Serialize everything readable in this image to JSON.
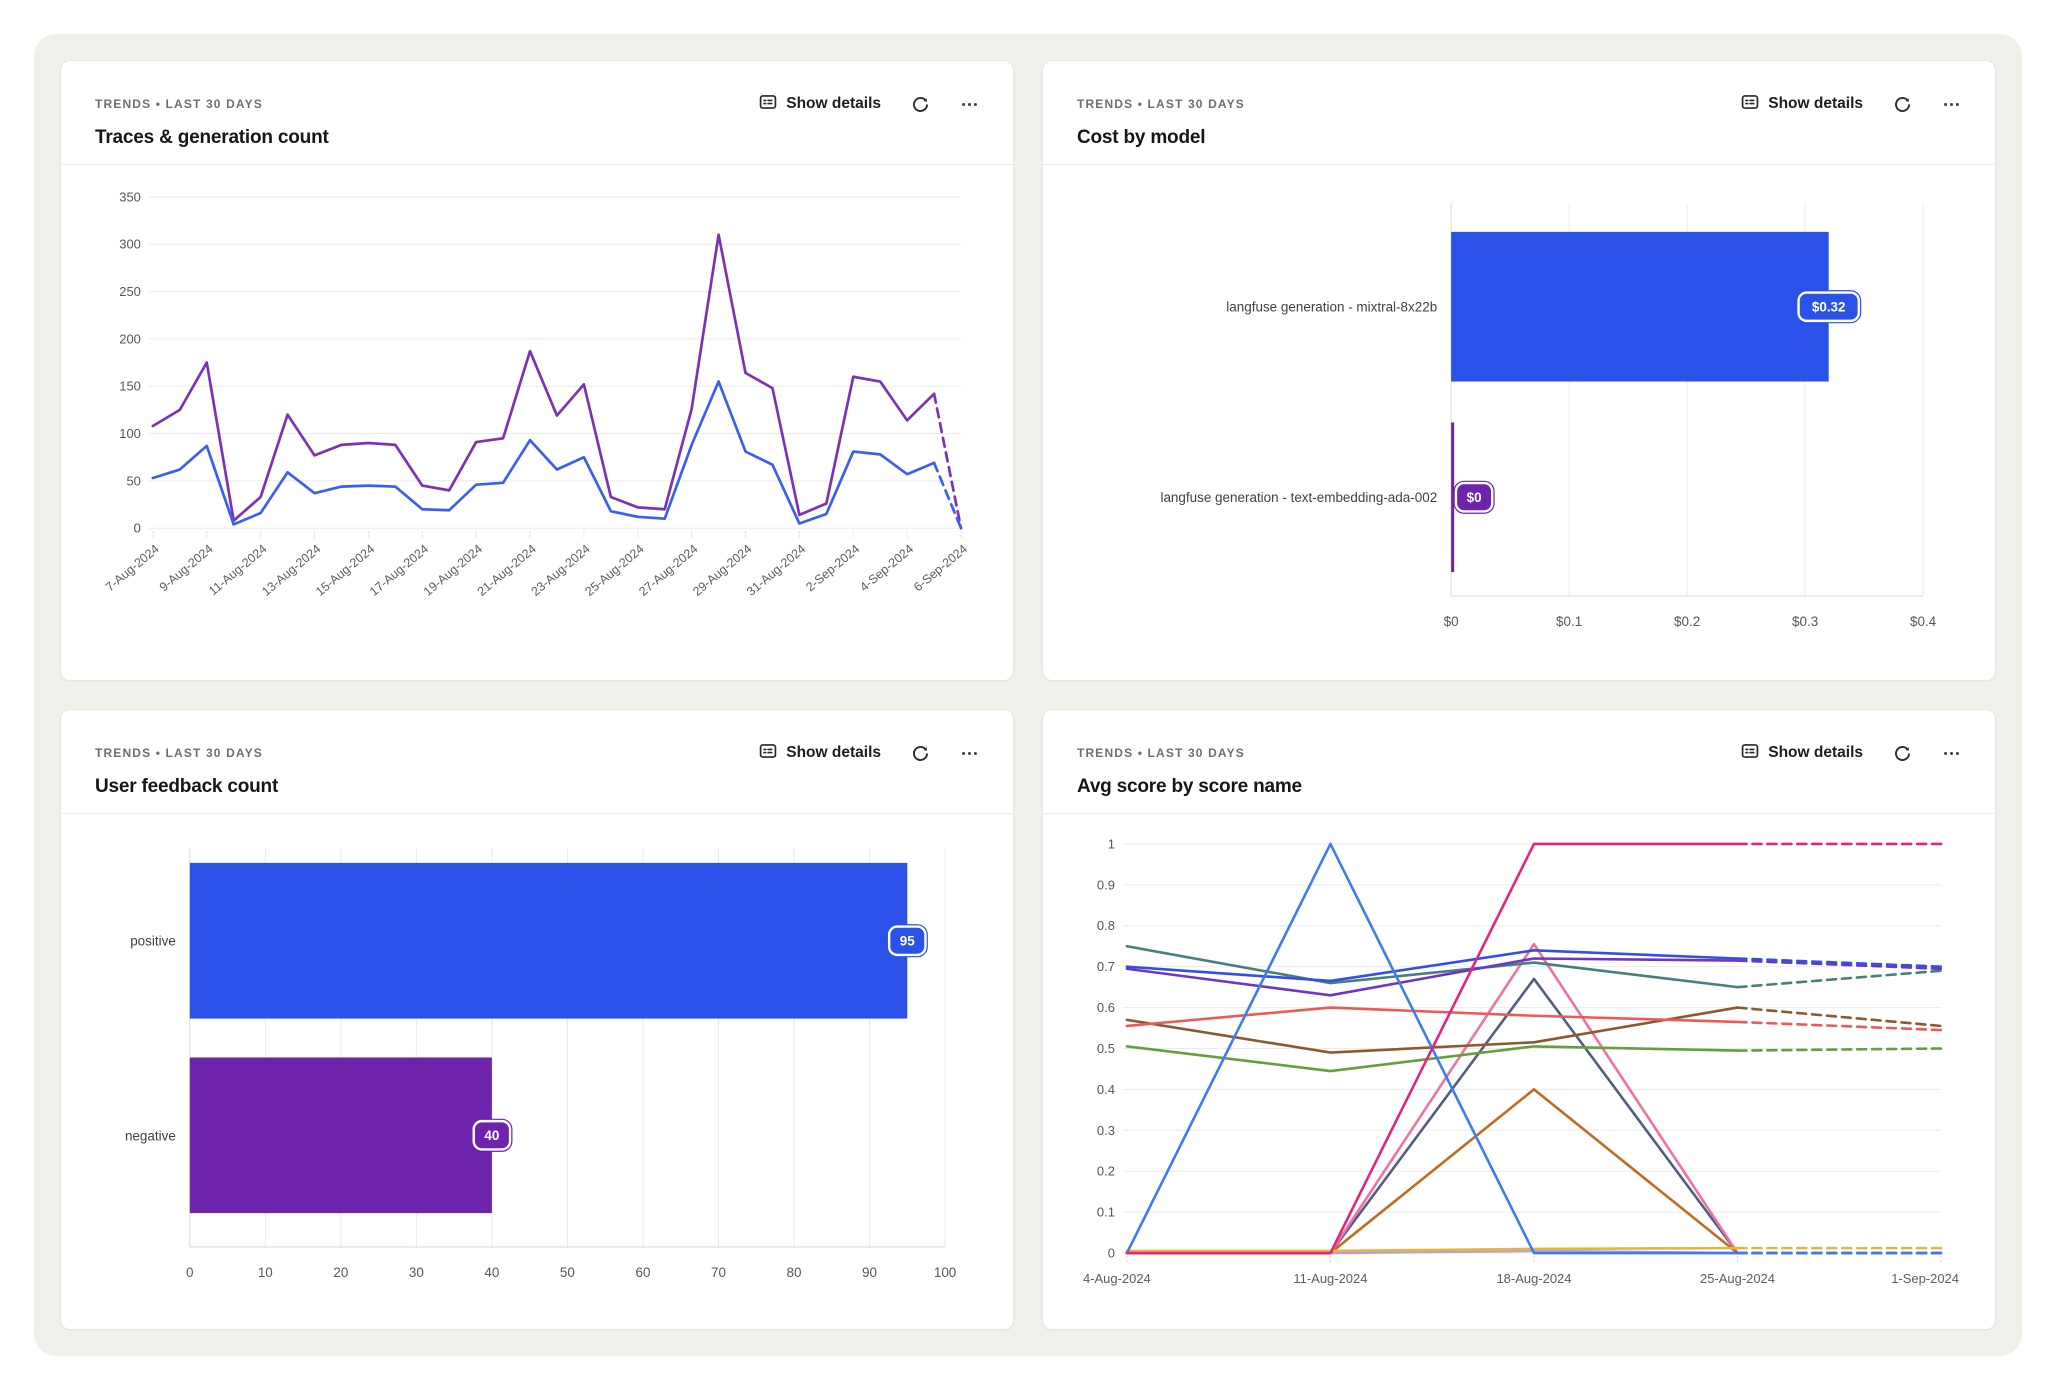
{
  "theme": {
    "panel_bg": "#f1f1ec",
    "card_bg": "#ffffff",
    "blue": "#2a52e8",
    "purple": "#6d23ab",
    "grid_line": "#ebebe9",
    "axis_text": "#55555c"
  },
  "cards": {
    "traces": {
      "eyebrow": "TRENDS • LAST 30 DAYS",
      "title": "Traces & generation count",
      "show_details": "Show details"
    },
    "cost": {
      "eyebrow": "TRENDS • LAST 30 DAYS",
      "title": "Cost by model",
      "show_details": "Show details"
    },
    "feedback": {
      "eyebrow": "TRENDS • LAST 30 DAYS",
      "title": "User feedback count",
      "show_details": "Show details"
    },
    "scores": {
      "eyebrow": "TRENDS • LAST 30 DAYS",
      "title": "Avg score by score name",
      "show_details": "Show details"
    }
  },
  "chart_data": [
    {
      "id": "traces-generation-count",
      "type": "line",
      "title": "Traces & generation count",
      "x": [
        "7-Aug-2024",
        "8-Aug-2024",
        "9-Aug-2024",
        "10-Aug-2024",
        "11-Aug-2024",
        "12-Aug-2024",
        "13-Aug-2024",
        "14-Aug-2024",
        "15-Aug-2024",
        "16-Aug-2024",
        "17-Aug-2024",
        "18-Aug-2024",
        "19-Aug-2024",
        "20-Aug-2024",
        "21-Aug-2024",
        "22-Aug-2024",
        "23-Aug-2024",
        "24-Aug-2024",
        "25-Aug-2024",
        "26-Aug-2024",
        "27-Aug-2024",
        "28-Aug-2024",
        "29-Aug-2024",
        "30-Aug-2024",
        "31-Aug-2024",
        "1-Sep-2024",
        "2-Sep-2024",
        "3-Sep-2024",
        "4-Sep-2024",
        "5-Sep-2024",
        "6-Sep-2024"
      ],
      "x_labels_shown_every": 2,
      "ylim": [
        0,
        350
      ],
      "yticks": [
        0,
        50,
        100,
        150,
        200,
        250,
        300,
        350
      ],
      "dashed_tail_points": 1,
      "series": [
        {
          "name": "series-purple",
          "color": "#7b32b4",
          "values": [
            108,
            125,
            175,
            8,
            33,
            120,
            77,
            88,
            90,
            88,
            45,
            40,
            91,
            95,
            187,
            119,
            152,
            33,
            22,
            20,
            126,
            310,
            164,
            148,
            14,
            26,
            160,
            155,
            114,
            142,
            0
          ]
        },
        {
          "name": "series-blue",
          "color": "#3a5fee",
          "values": [
            53,
            62,
            87,
            4,
            16,
            59,
            37,
            44,
            45,
            44,
            20,
            19,
            46,
            48,
            93,
            62,
            75,
            18,
            12,
            10,
            88,
            155,
            81,
            67,
            5,
            15,
            81,
            78,
            57,
            69,
            0
          ]
        }
      ]
    },
    {
      "id": "cost-by-model",
      "type": "hbar",
      "title": "Cost by model",
      "categories": [
        "langfuse generation - mixtral-8x22b",
        "langfuse generation - text-embedding-ada-002"
      ],
      "values": [
        0.32,
        0
      ],
      "value_labels": [
        "$0.32",
        "$0"
      ],
      "colors": [
        "#2a52e8",
        "#6d23ab"
      ],
      "xlim": [
        0,
        0.4
      ],
      "xticks": [
        "$0",
        "$0.1",
        "$0.2",
        "$0.3",
        "$0.4"
      ],
      "xtick_values": [
        0,
        0.1,
        0.2,
        0.3,
        0.4
      ]
    },
    {
      "id": "user-feedback-count",
      "type": "hbar",
      "title": "User feedback count",
      "categories": [
        "positive",
        "negative"
      ],
      "values": [
        95,
        40
      ],
      "value_labels": [
        "95",
        "40"
      ],
      "colors": [
        "#2a52e8",
        "#6d23ab"
      ],
      "xlim": [
        0,
        100
      ],
      "xticks": [
        "0",
        "10",
        "20",
        "30",
        "40",
        "50",
        "60",
        "70",
        "80",
        "90",
        "100"
      ],
      "xtick_values": [
        0,
        10,
        20,
        30,
        40,
        50,
        60,
        70,
        80,
        90,
        100
      ]
    },
    {
      "id": "avg-score-by-score-name",
      "type": "line",
      "title": "Avg score by score name",
      "x": [
        "4-Aug-2024",
        "11-Aug-2024",
        "18-Aug-2024",
        "25-Aug-2024",
        "1-Sep-2024"
      ],
      "x_labels_shown_every": 1,
      "ylim": [
        0,
        1
      ],
      "yticks": [
        0,
        0.1,
        0.2,
        0.3,
        0.4,
        0.5,
        0.6,
        0.7,
        0.8,
        0.9,
        1
      ],
      "dashed_tail_points": 1,
      "series": [
        {
          "name": "series-lavender",
          "color": "#b6a1dc",
          "values": [
            0,
            0,
            0.005,
            0,
            0
          ]
        },
        {
          "name": "series-slate",
          "color": "#505f7d",
          "values": [
            0,
            0,
            0.67,
            0,
            0
          ]
        },
        {
          "name": "series-pink",
          "color": "#ef72a3",
          "values": [
            0,
            0,
            0.755,
            0,
            0
          ]
        },
        {
          "name": "series-orange",
          "color": "#c26a1e",
          "values": [
            0,
            0,
            0.4,
            0,
            0
          ]
        },
        {
          "name": "series-green",
          "color": "#63a03c",
          "values": [
            0.505,
            0.445,
            0.505,
            0.495,
            0.5
          ]
        },
        {
          "name": "series-brown",
          "color": "#8a5a2e",
          "values": [
            0.57,
            0.49,
            0.515,
            0.6,
            0.555
          ]
        },
        {
          "name": "series-red",
          "color": "#ea5a57",
          "values": [
            0.555,
            0.6,
            0.58,
            0.565,
            0.545
          ]
        },
        {
          "name": "series-teal",
          "color": "#45807c",
          "values": [
            0.75,
            0.66,
            0.71,
            0.65,
            0.69
          ]
        },
        {
          "name": "series-violet",
          "color": "#6d35c8",
          "values": [
            0.695,
            0.63,
            0.72,
            0.715,
            0.695
          ]
        },
        {
          "name": "series-royal-blue",
          "color": "#3350e0",
          "values": [
            0.7,
            0.665,
            0.74,
            0.72,
            0.7
          ]
        },
        {
          "name": "series-gold",
          "color": "#e9b43e",
          "values": [
            0.005,
            0.005,
            0.01,
            0.012,
            0.012
          ]
        },
        {
          "name": "series-bright-blue",
          "color": "#3d7bf0",
          "values": [
            0,
            1,
            0,
            0,
            0
          ]
        },
        {
          "name": "series-magenta",
          "color": "#dc2680",
          "values": [
            0,
            0,
            1,
            1,
            1
          ]
        }
      ]
    }
  ]
}
